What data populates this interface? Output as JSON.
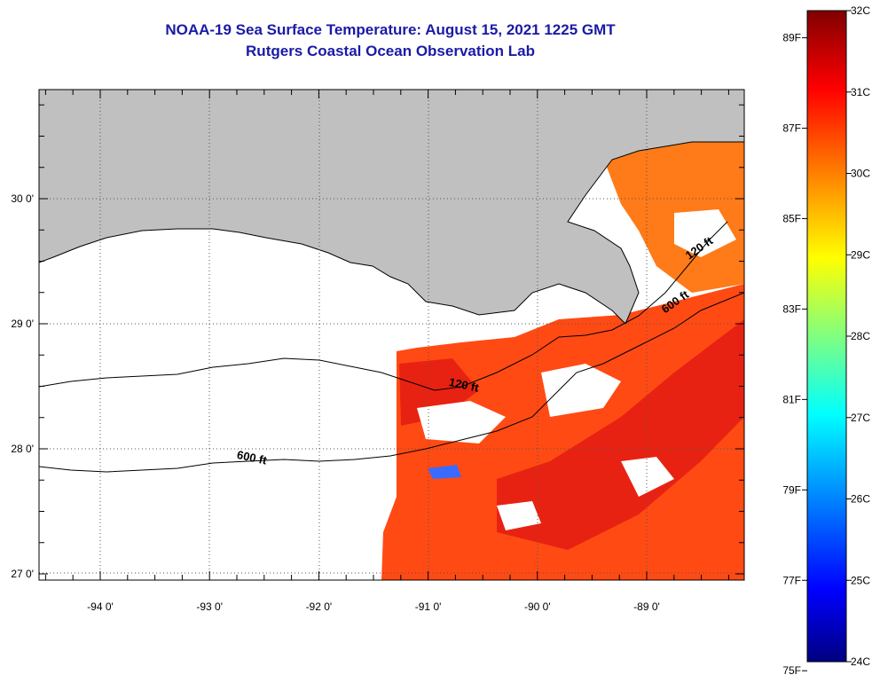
{
  "title": {
    "line1": "NOAA-19 Sea Surface Temperature:  August 15, 2021 1225 GMT",
    "line2": "Rutgers Coastal Ocean Observation Lab"
  },
  "map": {
    "lon_ticks": [
      {
        "value": -94,
        "label": "-94 0'"
      },
      {
        "value": -93,
        "label": "-93 0'"
      },
      {
        "value": -92,
        "label": "-92 0'"
      },
      {
        "value": -91,
        "label": "-91 0'"
      },
      {
        "value": -90,
        "label": "-90 0'"
      },
      {
        "value": -89,
        "label": "-89 0'"
      }
    ],
    "lat_ticks": [
      {
        "value": 30,
        "label": "30 0'"
      },
      {
        "value": 29,
        "label": "29 0'"
      },
      {
        "value": 28,
        "label": "28 0'"
      },
      {
        "value": 27,
        "label": "27 0'"
      }
    ],
    "contour_labels": [
      {
        "text": "120 ft",
        "lon": -90.68,
        "lat": 28.48
      },
      {
        "text": "600 ft",
        "lon": -92.62,
        "lat": 27.9
      },
      {
        "text": "120 ft",
        "lon": -88.5,
        "lat": 29.58
      },
      {
        "text": "600 ft",
        "lon": -88.72,
        "lat": 29.15
      }
    ],
    "land_color": "#c0c0c0"
  },
  "colorbar": {
    "min_c": 24,
    "max_c": 32,
    "celsius_labels": [
      "32C",
      "31C",
      "30C",
      "29C",
      "28C",
      "27C",
      "26C",
      "25C",
      "24C"
    ],
    "fahrenheit_labels": [
      "89F",
      "87F",
      "85F",
      "83F",
      "81F",
      "79F",
      "77F",
      "75F"
    ]
  }
}
